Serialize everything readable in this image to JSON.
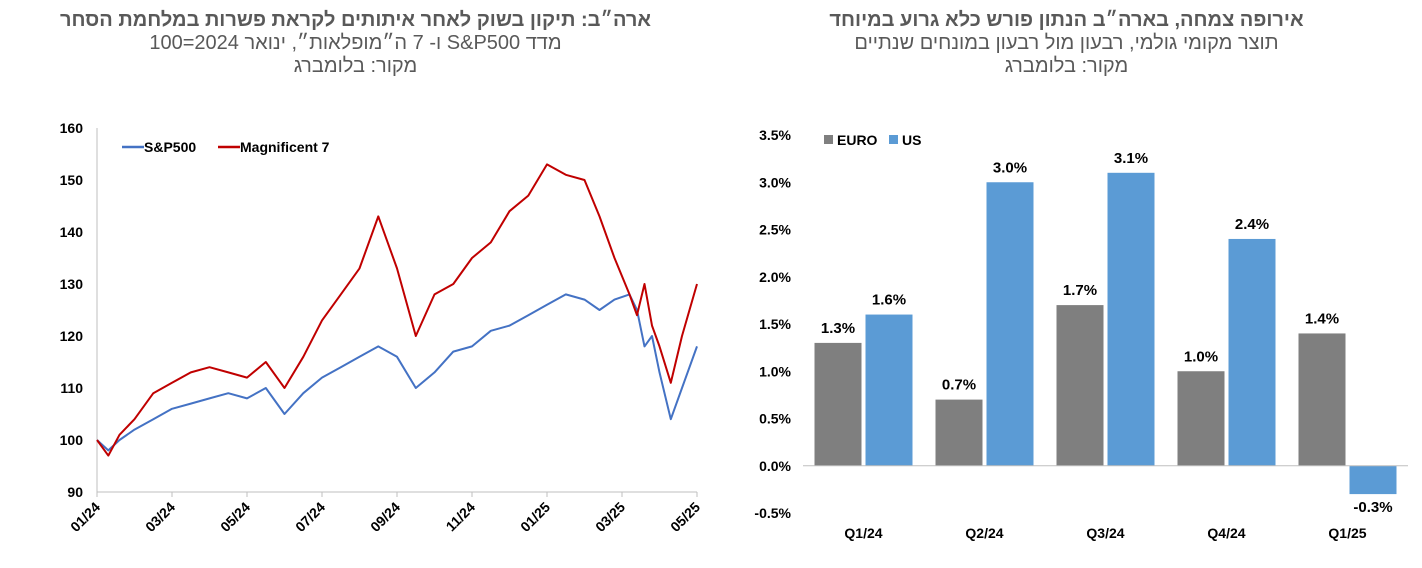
{
  "left": {
    "title": "ארה״ב: תיקון בשוק לאחר איתותים לקראת פשרות במלחמת הסחר",
    "subtitle": "מדד S&P500 ו- 7 ה״מופלאות״, ינואר 2024=100",
    "source": "מקור: בלומברג"
  },
  "right": {
    "title": "אירופה צמחה, בארה״ב הנתון פורש כלא גרוע במיוחד",
    "subtitle": "תוצר מקומי גולמי, רבעון מול רבעון במונחים שנתיים",
    "source": "מקור: בלומברג"
  },
  "chart_data": [
    {
      "type": "line",
      "title": "ארה״ב: תיקון בשוק לאחר איתותים לקראת פשרות במלחמת הסחר",
      "subtitle": "מדד S&P500 ו- 7 ה״מופלאות״, ינואר 2024=100",
      "ylim": [
        90,
        160
      ],
      "yticks": [
        "90",
        "100",
        "110",
        "120",
        "130",
        "140",
        "150",
        "160"
      ],
      "xlim": [
        0,
        16
      ],
      "xticks": [
        "01/24",
        "03/24",
        "05/24",
        "07/24",
        "09/24",
        "11/24",
        "01/25",
        "03/25",
        "05/25"
      ],
      "legend_position": "top-left",
      "series": [
        {
          "name": "S&P500",
          "color": "#4472C4",
          "x": [
            0,
            0.3,
            0.6,
            1,
            1.5,
            2,
            2.5,
            3,
            3.5,
            4,
            4.5,
            5,
            5.5,
            6,
            6.5,
            7,
            7.5,
            8,
            8.5,
            9,
            9.5,
            10,
            10.5,
            11,
            11.5,
            12,
            12.5,
            13,
            13.4,
            13.8,
            14.2,
            14.4,
            14.6,
            14.8,
            15,
            15.3,
            15.6,
            16
          ],
          "y": [
            100,
            98,
            100,
            102,
            104,
            106,
            107,
            108,
            109,
            108,
            110,
            105,
            109,
            112,
            114,
            116,
            118,
            116,
            110,
            113,
            117,
            118,
            121,
            122,
            124,
            126,
            128,
            127,
            125,
            127,
            128,
            125,
            118,
            120,
            113,
            104,
            110,
            118
          ]
        },
        {
          "name": "Magnificent 7",
          "color": "#C00000",
          "x": [
            0,
            0.3,
            0.6,
            1,
            1.5,
            2,
            2.5,
            3,
            3.5,
            4,
            4.5,
            5,
            5.5,
            6,
            6.5,
            7,
            7.5,
            8,
            8.5,
            9,
            9.5,
            10,
            10.5,
            11,
            11.5,
            12,
            12.5,
            13,
            13.4,
            13.8,
            14.2,
            14.4,
            14.6,
            14.8,
            15,
            15.3,
            15.6,
            16
          ],
          "y": [
            100,
            97,
            101,
            104,
            109,
            111,
            113,
            114,
            113,
            112,
            115,
            110,
            116,
            123,
            128,
            133,
            143,
            133,
            120,
            128,
            130,
            135,
            138,
            144,
            147,
            153,
            151,
            150,
            143,
            135,
            128,
            124,
            130,
            122,
            118,
            111,
            120,
            130
          ]
        }
      ]
    },
    {
      "type": "bar",
      "title": "אירופה צמחה, בארה״ב הנתון פורש כלא גרוע במיוחד",
      "subtitle": "תוצר מקומי גולמי, רבעון מול רבעון במונחים שנתיים",
      "categories": [
        "Q1/24",
        "Q2/24",
        "Q3/24",
        "Q4/24",
        "Q1/25"
      ],
      "ylim": [
        -0.5,
        3.5
      ],
      "yticks": [
        "-0.5%",
        "0.0%",
        "0.5%",
        "1.0%",
        "1.5%",
        "2.0%",
        "2.5%",
        "3.0%",
        "3.5%"
      ],
      "legend_position": "top-left",
      "series": [
        {
          "name": "EURO",
          "color": "#7F7F7F",
          "values": [
            1.3,
            0.7,
            1.7,
            1.0,
            1.4
          ],
          "labels": [
            "1.3%",
            "0.7%",
            "1.7%",
            "1.0%",
            "1.4%"
          ]
        },
        {
          "name": "US",
          "color": "#5B9BD5",
          "values": [
            1.6,
            3.0,
            3.1,
            2.4,
            -0.3
          ],
          "labels": [
            "1.6%",
            "3.0%",
            "3.1%",
            "2.4%",
            "-0.3%"
          ]
        }
      ]
    }
  ]
}
